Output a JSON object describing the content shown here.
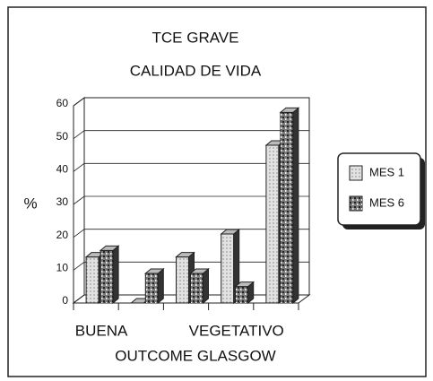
{
  "chart_data": {
    "type": "bar3d",
    "title": "TCE GRAVE",
    "subtitle": "CALIDAD DE VIDA",
    "x_label": "OUTCOME GLASGOW",
    "y_label": "%",
    "categories": [
      "BUENA",
      null,
      null,
      "VEGETATIVO",
      null
    ],
    "series": [
      {
        "name": "MES 1",
        "color": "#e2e2e2",
        "values": [
          14,
          0,
          14,
          21,
          48
        ]
      },
      {
        "name": "MES 6",
        "color": "#7a7a7a",
        "values": [
          16,
          9,
          9,
          5,
          58
        ]
      }
    ],
    "ylim": [
      0,
      60
    ],
    "yticks": [
      0,
      10,
      20,
      30,
      40,
      50,
      60
    ],
    "grid": true,
    "legend": "right"
  }
}
